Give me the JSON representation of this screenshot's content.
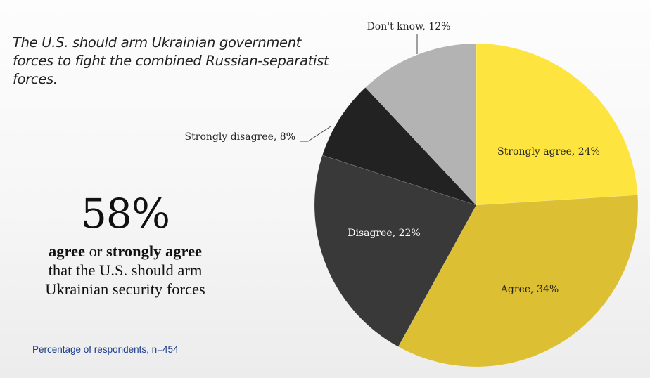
{
  "question": "The U.S. should arm Ukrainian government forces to fight the combined Russian-separatist forces.",
  "headline_stat": {
    "value": "58%",
    "desc_bold_1": "agree",
    "desc_mid": " or ",
    "desc_bold_2": "strongly agree",
    "desc_rest_1": "that the U.S. should arm",
    "desc_rest_2": "Ukrainian security forces"
  },
  "source_note": "Percentage of respondents, n=454",
  "chart_data": {
    "type": "pie",
    "title": "The U.S. should arm Ukrainian government forces to fight the combined Russian-separatist forces.",
    "start": "12 o'clock, clockwise",
    "slices": [
      {
        "name": "Strongly agree",
        "value": 24,
        "label": "Strongly agree, 24%",
        "color": "#fde43f",
        "label_color": "#222222"
      },
      {
        "name": "Agree",
        "value": 34,
        "label": "Agree, 34%",
        "color": "#dcbf33",
        "label_color": "#222222"
      },
      {
        "name": "Disagree",
        "value": 22,
        "label": "Disagree, 22%",
        "color": "#393939",
        "label_color": "#ffffff"
      },
      {
        "name": "Strongly disagree",
        "value": 8,
        "label": "Strongly disagree, 8%",
        "color": "#222222",
        "label_color": "#222222",
        "callout": true
      },
      {
        "name": "Don't know",
        "value": 12,
        "label": "Don't know, 12%",
        "color": "#b3b3b3",
        "label_color": "#222222",
        "callout": true
      }
    ],
    "total_n": 454
  }
}
